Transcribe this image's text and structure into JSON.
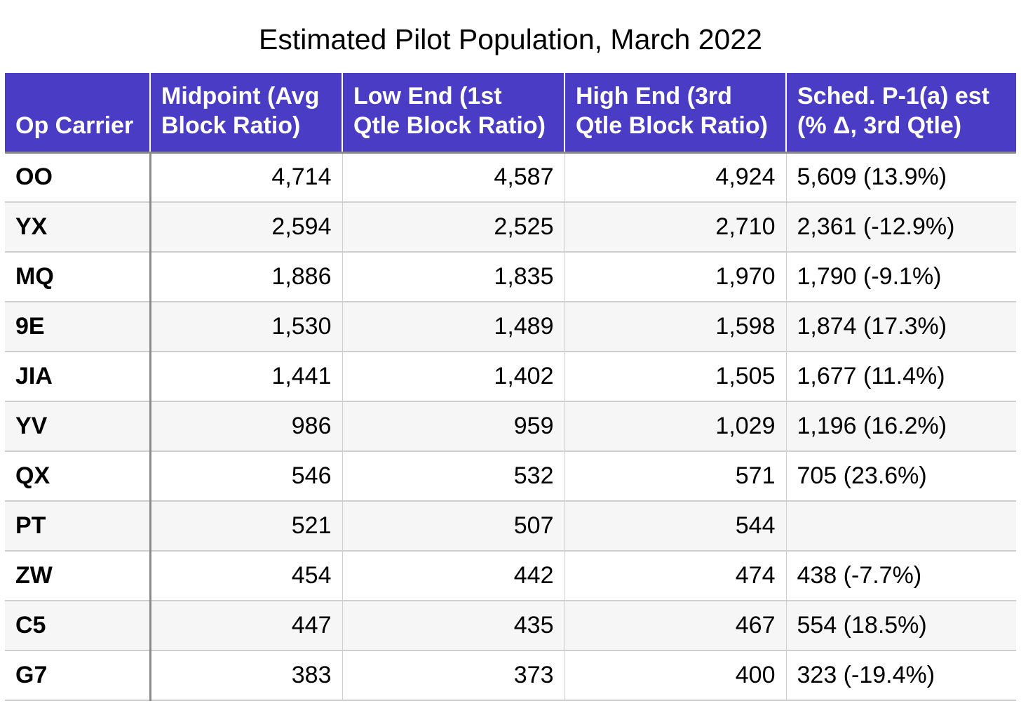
{
  "title": "Estimated Pilot Population, March 2022",
  "table": {
    "headers": [
      "Op Carrier",
      "Midpoint (Avg Block Ratio)",
      "Low End (1st Qtle Block Ratio)",
      "High End (3rd Qtle Block Ratio)",
      "Sched. P-1(a) est (% Δ, 3rd Qtle)"
    ],
    "rows": [
      [
        "OO",
        "4,714",
        "4,587",
        "4,924",
        "5,609 (13.9%)"
      ],
      [
        "YX",
        "2,594",
        "2,525",
        "2,710",
        "2,361 (-12.9%)"
      ],
      [
        "MQ",
        "1,886",
        "1,835",
        "1,970",
        "1,790 (-9.1%)"
      ],
      [
        "9E",
        "1,530",
        "1,489",
        "1,598",
        "1,874 (17.3%)"
      ],
      [
        "JIA",
        "1,441",
        "1,402",
        "1,505",
        "1,677 (11.4%)"
      ],
      [
        "YV",
        "986",
        "959",
        "1,029",
        "1,196 (16.2%)"
      ],
      [
        "QX",
        "546",
        "532",
        "571",
        "705 (23.6%)"
      ],
      [
        "PT",
        "521",
        "507",
        "544",
        ""
      ],
      [
        "ZW",
        "454",
        "442",
        "474",
        "438 (-7.7%)"
      ],
      [
        "C5",
        "447",
        "435",
        "467",
        "554 (18.5%)"
      ],
      [
        "G7",
        "383",
        "373",
        "400",
        "323 (-19.4%)"
      ]
    ]
  },
  "colors": {
    "header_background": "#4a3cc4",
    "header_text": "#ffffff",
    "stripe_background": "#f6f6f6"
  }
}
